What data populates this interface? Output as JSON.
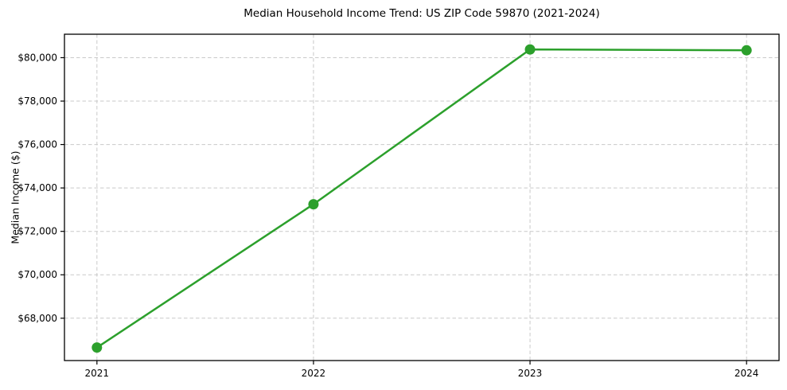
{
  "chart_data": {
    "type": "line",
    "title": "Median Household Income Trend: US ZIP Code 59870 (2021-2024)",
    "xlabel": "",
    "ylabel": "Median Income ($)",
    "x": [
      2021,
      2022,
      2023,
      2024
    ],
    "series": [
      {
        "name": "Median Household Income",
        "values": [
          66650,
          73250,
          80380,
          80340
        ]
      }
    ],
    "x_tick_labels": [
      "2021",
      "2022",
      "2023",
      "2024"
    ],
    "y_ticks": [
      68000,
      70000,
      72000,
      74000,
      76000,
      78000,
      80000
    ],
    "y_tick_labels": [
      "$68,000",
      "$70,000",
      "$72,000",
      "$74,000",
      "$76,000",
      "$78,000",
      "$80,000"
    ],
    "xlim": [
      2020.85,
      2024.15
    ],
    "ylim": [
      66050,
      81080
    ],
    "grid": true,
    "legend_position": "none",
    "colors": {
      "line": "#2ca02c",
      "marker": "#2ca02c",
      "grid": "#c9c9c9",
      "spine": "#000000",
      "tick_text": "#000000",
      "background": "#ffffff"
    }
  }
}
